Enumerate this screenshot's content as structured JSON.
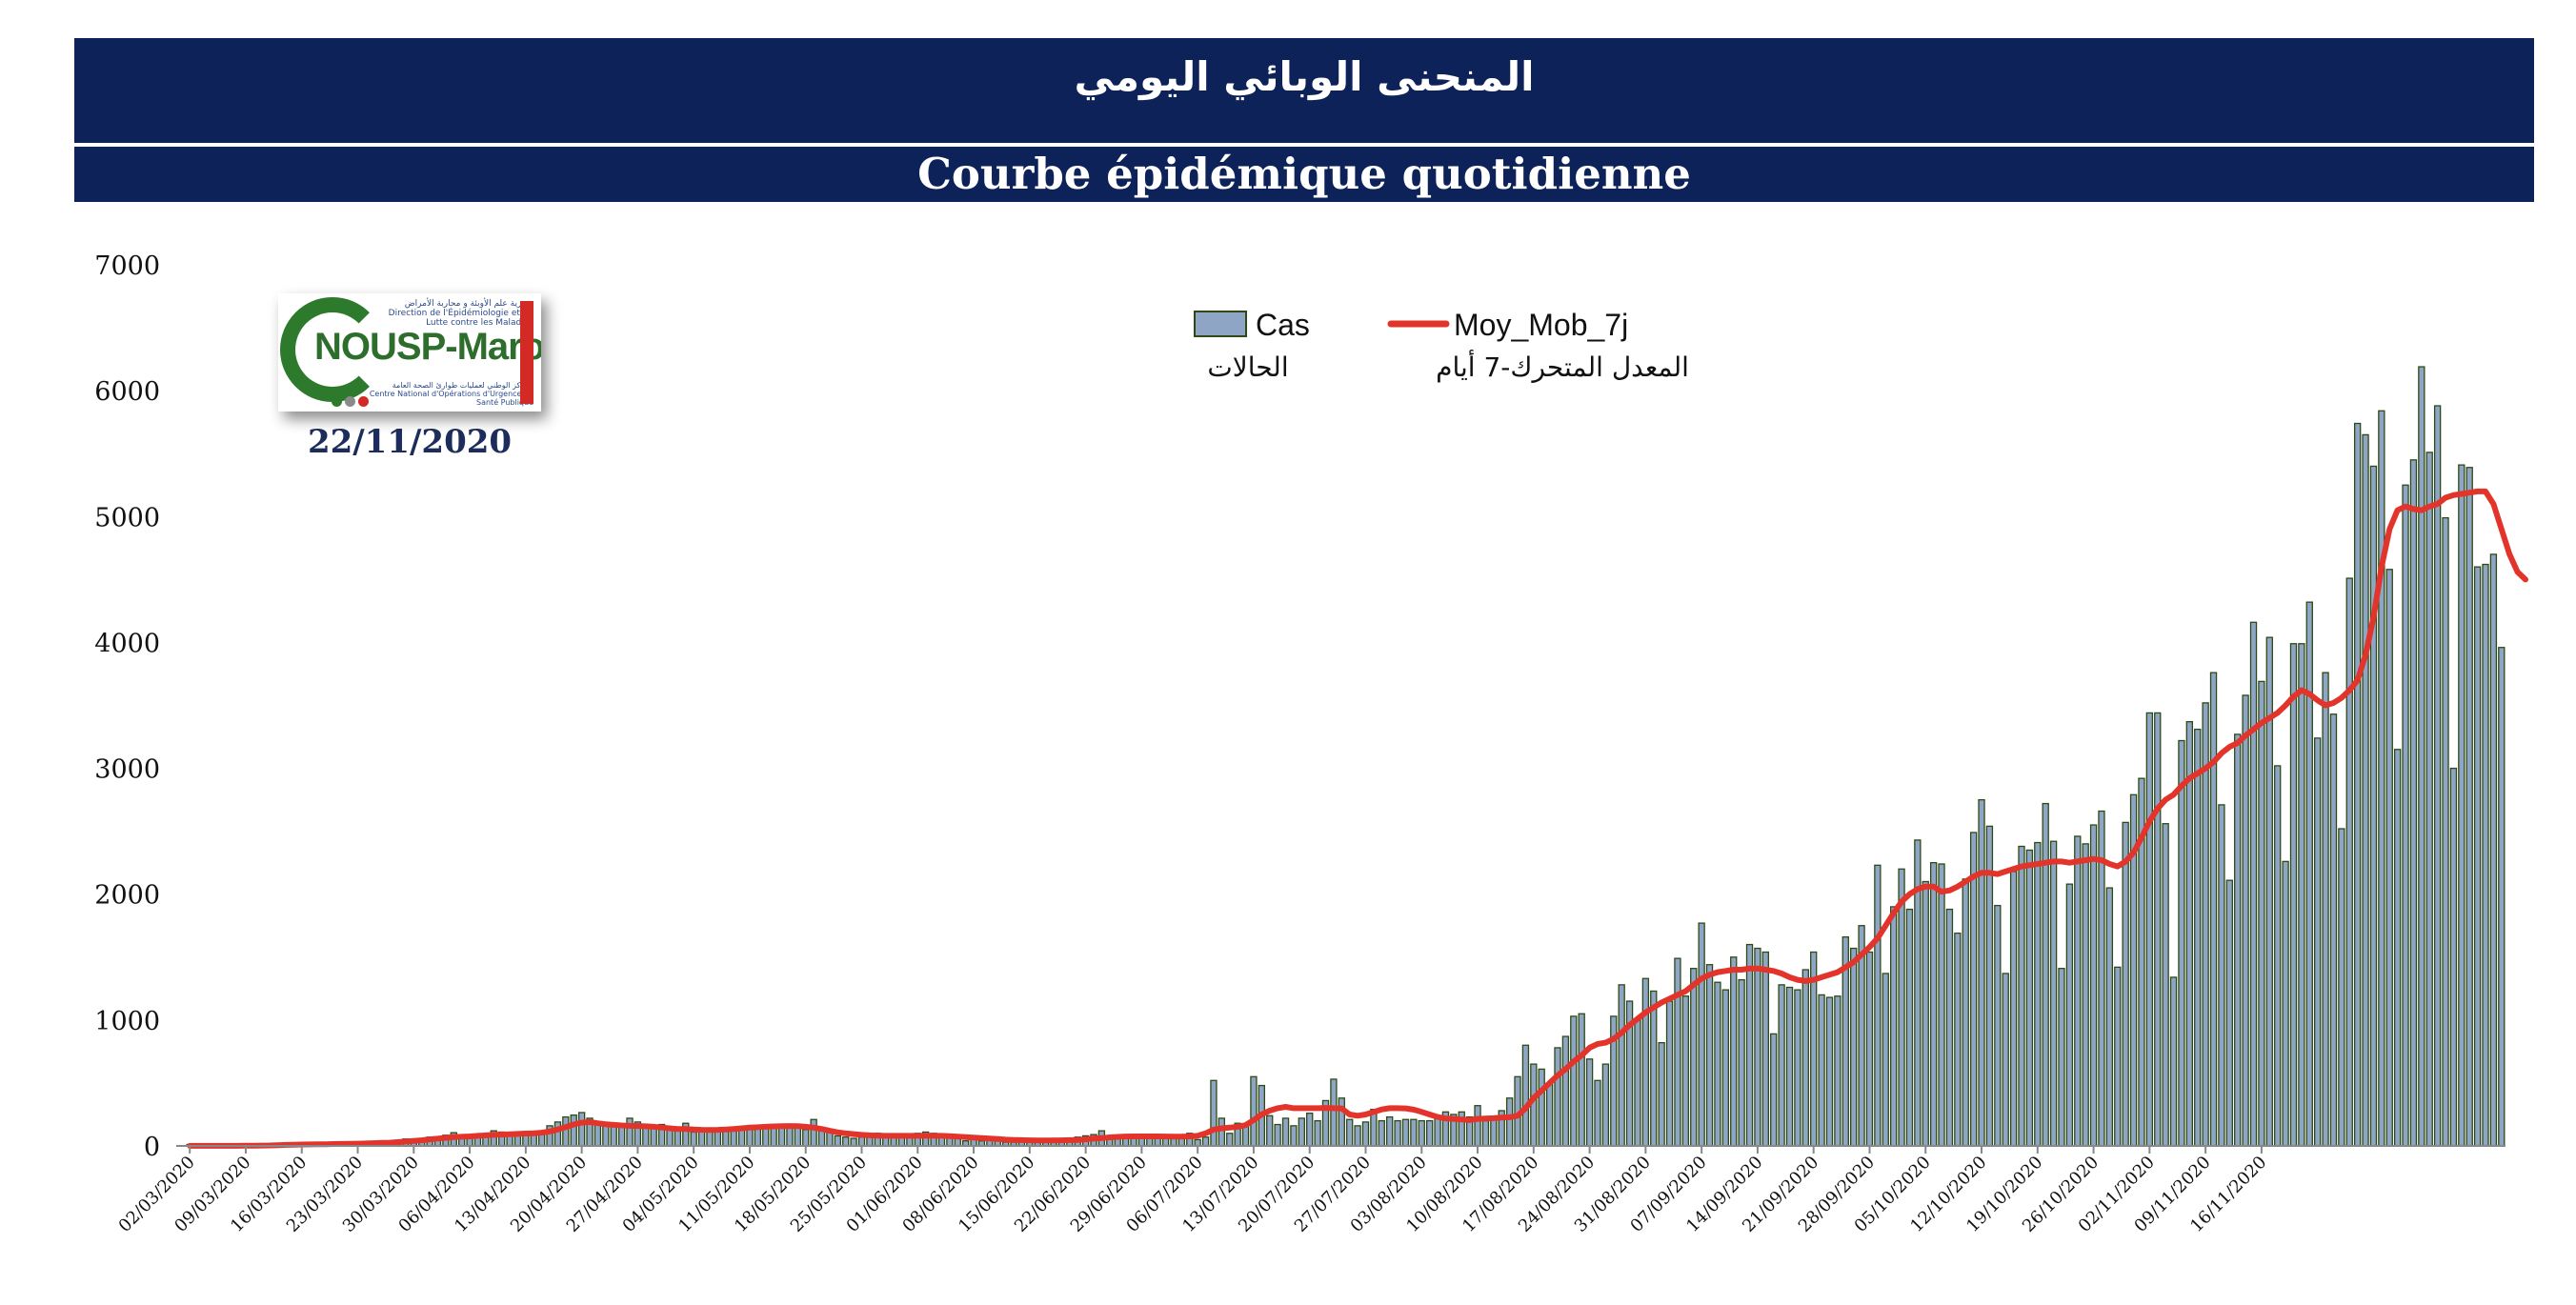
{
  "header": {
    "title_ar": "المنحنى الوبائي اليومي",
    "title_fr": "Courbe épidémique quotidienne"
  },
  "logo": {
    "name": "NOUSP-Maroc",
    "line_top_ar": "مديرية علم الأوبئة و محاربة الأمراض",
    "line_top_fr": "Direction de l'Épidémiologie et de Lutte contre les Maladies",
    "line_bottom_ar": "المركز الوطني لعمليات طوارئ الصحة العامة",
    "line_bottom_fr": "Centre National d'Opérations d'Urgence en Santé Publique",
    "date": "22/11/2020"
  },
  "colors": {
    "header_bg": "#0c2258",
    "bar_fill": "#8ea5c6",
    "bar_stroke": "#2e4a14",
    "line": "#e3342b",
    "logo_green": "#2d7a2d",
    "logo_red": "#d42a26"
  },
  "chart_data": {
    "type": "bar",
    "title": "Courbe épidémique quotidienne",
    "start_date": "02/03/2020",
    "end_date": "22/11/2020",
    "ylim": [
      0,
      7000
    ],
    "yticks": [
      0,
      1000,
      2000,
      3000,
      4000,
      5000,
      6000,
      7000
    ],
    "xtick_labels": [
      "02/03/2020",
      "09/03/2020",
      "16/03/2020",
      "23/03/2020",
      "30/03/2020",
      "06/04/2020",
      "13/04/2020",
      "20/04/2020",
      "27/04/2020",
      "04/05/2020",
      "11/05/2020",
      "18/05/2020",
      "25/05/2020",
      "01/06/2020",
      "08/06/2020",
      "15/06/2020",
      "22/06/2020",
      "29/06/2020",
      "06/07/2020",
      "13/07/2020",
      "20/07/2020",
      "27/07/2020",
      "03/08/2020",
      "10/08/2020",
      "17/08/2020",
      "24/08/2020",
      "31/08/2020",
      "07/09/2020",
      "14/09/2020",
      "21/09/2020",
      "28/09/2020",
      "05/10/2020",
      "12/10/2020",
      "19/10/2020",
      "26/10/2020",
      "02/11/2020",
      "09/11/2020",
      "16/11/2020"
    ],
    "grid": false,
    "legend": "top-center",
    "legend_entries": [
      {
        "label": "Cas",
        "label_ar": "الحالات",
        "kind": "bar"
      },
      {
        "label": "Moy_Mob_7j",
        "label_ar": "المعدل المتحرك-7 أيام",
        "kind": "line"
      }
    ],
    "series": [
      {
        "name": "Cas",
        "type": "bar",
        "values": [
          1,
          1,
          0,
          0,
          0,
          0,
          1,
          3,
          2,
          4,
          6,
          10,
          12,
          14,
          12,
          18,
          20,
          14,
          15,
          17,
          30,
          27,
          35,
          28,
          35,
          40,
          45,
          55,
          50,
          60,
          70,
          65,
          85,
          105,
          80,
          75,
          80,
          85,
          120,
          110,
          100,
          110,
          100,
          85,
          100,
          160,
          190,
          230,
          245,
          265,
          220,
          180,
          160,
          180,
          160,
          220,
          190,
          150,
          160,
          170,
          150,
          140,
          180,
          110,
          130,
          120,
          130,
          120,
          140,
          130,
          150,
          160,
          165,
          170,
          155,
          165,
          160,
          130,
          210,
          140,
          110,
          80,
          70,
          60,
          70,
          80,
          100,
          90,
          70,
          80,
          90,
          100,
          110,
          100,
          80,
          90,
          60,
          40,
          60,
          40,
          70,
          50,
          30,
          30,
          40,
          50,
          40,
          50,
          60,
          50,
          60,
          70,
          80,
          90,
          120,
          80,
          70,
          90,
          60,
          80,
          60,
          80,
          60,
          70,
          80,
          100,
          50,
          70,
          520,
          220,
          100,
          180,
          160,
          550,
          480,
          240,
          170,
          220,
          160,
          220,
          260,
          200,
          360,
          530,
          380,
          210,
          160,
          190,
          290,
          200,
          230,
          200,
          210,
          210,
          200,
          200,
          230,
          270,
          250,
          270,
          230,
          320,
          200,
          230,
          280,
          380,
          550,
          800,
          650,
          610,
          500,
          780,
          870,
          1030,
          1050,
          690,
          520,
          650,
          1030,
          1280,
          1150,
          1000,
          1330,
          1230,
          820,
          1150,
          1490,
          1190,
          1410,
          1770,
          1440,
          1300,
          1240,
          1500,
          1320,
          1600,
          1570,
          1540,
          890,
          1280,
          1260,
          1240,
          1400,
          1540,
          1200,
          1180,
          1190,
          1660,
          1570,
          1750,
          1540,
          2230,
          1370,
          1900,
          2200,
          1880,
          2430,
          2100,
          2250,
          2240,
          1880,
          1690,
          2120,
          2490,
          2750,
          2540,
          1910,
          1370,
          2180,
          2380,
          2350,
          2410,
          2720,
          2420,
          1410,
          2080,
          2460,
          2400,
          2550,
          2660,
          2050,
          1420,
          2570,
          2790,
          2920,
          3440,
          3440,
          2560,
          1340,
          3220,
          3370,
          3310,
          3520,
          3760,
          2710,
          2110,
          3270,
          3580,
          4160,
          3690,
          4040,
          3020,
          2260,
          3990,
          3990,
          4320,
          3240,
          3760,
          3430,
          2520,
          4510,
          5740,
          5650,
          5400,
          5840,
          4580,
          3150,
          5250,
          5450,
          6190,
          5510,
          5880,
          4990,
          3000,
          5410,
          5390,
          4600,
          4620,
          4700,
          3960
        ]
      },
      {
        "name": "Moy_Mob_7j",
        "type": "line",
        "values": [
          1,
          1,
          1,
          1,
          1,
          1,
          1,
          2,
          2,
          3,
          4,
          6,
          8,
          10,
          11,
          12,
          13,
          14,
          15,
          16,
          17,
          18,
          20,
          22,
          24,
          26,
          30,
          35,
          40,
          45,
          52,
          58,
          64,
          70,
          73,
          76,
          80,
          84,
          88,
          90,
          92,
          95,
          98,
          101,
          105,
          115,
          130,
          150,
          170,
          185,
          190,
          180,
          172,
          167,
          163,
          160,
          158,
          156,
          152,
          146,
          140,
          135,
          134,
          130,
          128,
          127,
          128,
          130,
          135,
          140,
          145,
          148,
          152,
          155,
          157,
          158,
          157,
          152,
          145,
          135,
          120,
          108,
          100,
          94,
          88,
          84,
          82,
          80,
          80,
          80,
          80,
          80,
          80,
          80,
          80,
          78,
          74,
          70,
          66,
          62,
          58,
          55,
          50,
          48,
          46,
          45,
          44,
          44,
          44,
          45,
          46,
          48,
          52,
          58,
          62,
          68,
          72,
          75,
          76,
          76,
          76,
          76,
          75,
          74,
          74,
          76,
          80,
          100,
          130,
          140,
          145,
          152,
          165,
          205,
          250,
          280,
          300,
          310,
          300,
          300,
          300,
          300,
          302,
          300,
          298,
          250,
          240,
          250,
          270,
          290,
          300,
          300,
          298,
          288,
          270,
          250,
          230,
          218,
          215,
          210,
          205,
          215,
          218,
          220,
          225,
          228,
          240,
          300,
          380,
          440,
          500,
          560,
          610,
          670,
          720,
          780,
          810,
          820,
          850,
          900,
          960,
          1010,
          1060,
          1100,
          1140,
          1170,
          1200,
          1230,
          1280,
          1330,
          1360,
          1380,
          1390,
          1400,
          1400,
          1410,
          1410,
          1400,
          1390,
          1370,
          1340,
          1320,
          1310,
          1320,
          1340,
          1360,
          1380,
          1420,
          1460,
          1520,
          1580,
          1650,
          1750,
          1850,
          1940,
          2000,
          2040,
          2060,
          2060,
          2020,
          2030,
          2060,
          2100,
          2140,
          2170,
          2170,
          2160,
          2180,
          2200,
          2220,
          2230,
          2240,
          2250,
          2260,
          2260,
          2250,
          2260,
          2270,
          2280,
          2270,
          2240,
          2220,
          2260,
          2330,
          2450,
          2580,
          2680,
          2750,
          2790,
          2860,
          2920,
          2960,
          3000,
          3050,
          3120,
          3170,
          3200,
          3260,
          3310,
          3360,
          3400,
          3440,
          3500,
          3570,
          3620,
          3590,
          3540,
          3500,
          3520,
          3560,
          3620,
          3700,
          3900,
          4200,
          4600,
          4900,
          5050,
          5080,
          5060,
          5050,
          5080,
          5100,
          5150,
          5170,
          5180,
          5190,
          5200,
          5200,
          5100,
          4900,
          4700,
          4560,
          4500
        ]
      }
    ]
  }
}
